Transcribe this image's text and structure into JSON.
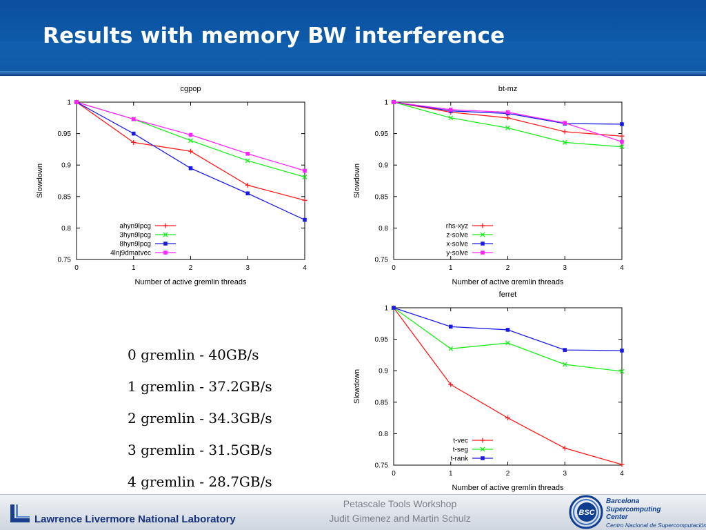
{
  "slide": {
    "title": "Results with memory BW interference"
  },
  "bandwidth_list": [
    "0 gremlin - 40GB/s",
    "1 gremlin - 37.2GB/s",
    "2 gremlin - 34.3GB/s",
    "3 gremlin - 31.5GB/s",
    "4 gremlin - 28.7GB/s"
  ],
  "footer": {
    "lab_name": "Lawrence Livermore National Laboratory",
    "workshop": "Petascale Tools Workshop",
    "authors": "Judit Gimenez and Martin Schulz",
    "bsc_logo_text": "BSC",
    "bsc_line1": "Barcelona",
    "bsc_line2": "Supercomputing",
    "bsc_line3": "Center",
    "bsc_line4": "Centro Nacional de Supercomputación"
  },
  "colors": {
    "red": "#ff1a1a",
    "green": "#1aee1a",
    "blue": "#1a1ae6",
    "magenta": "#ff22ff",
    "header": "#0d5aa8"
  },
  "chart_data": [
    {
      "id": "cgpop",
      "type": "line",
      "title": "cgpop",
      "xlabel": "Number of active gremlin threads",
      "ylabel": "Slowdown",
      "x": [
        0,
        1,
        2,
        3,
        4
      ],
      "xlim": [
        0,
        4
      ],
      "ylim": [
        0.75,
        1
      ],
      "yticks": [
        0.75,
        0.8,
        0.85,
        0.9,
        0.95,
        1
      ],
      "ytick_labels": [
        "0.75",
        "0.8",
        "0.85",
        "0.9",
        "0.95",
        "1"
      ],
      "xtick_labels": [
        "0",
        "1",
        "2",
        "3",
        "4"
      ],
      "legend": "bottom-left",
      "series": [
        {
          "name": "ahyn9lpcg",
          "color": "red",
          "marker": "plus",
          "values": [
            1.0,
            0.936,
            0.922,
            0.868,
            0.844
          ]
        },
        {
          "name": "3hyn9lpcg",
          "color": "green",
          "marker": "x",
          "values": [
            1.0,
            0.973,
            0.939,
            0.907,
            0.881
          ]
        },
        {
          "name": "8hyn9lpcg",
          "color": "blue",
          "marker": "square",
          "values": [
            1.0,
            0.95,
            0.895,
            0.855,
            0.813
          ]
        },
        {
          "name": "4lnj9dmatvec",
          "color": "magenta",
          "marker": "square",
          "values": [
            1.0,
            0.973,
            0.948,
            0.918,
            0.891
          ]
        }
      ]
    },
    {
      "id": "bt-mz",
      "type": "line",
      "title": "bt-mz",
      "xlabel": "Number of active gremlin threads",
      "ylabel": "Slowdown",
      "x": [
        0,
        1,
        2,
        3,
        4
      ],
      "xlim": [
        0,
        4
      ],
      "ylim": [
        0.75,
        1
      ],
      "yticks": [
        0.75,
        0.8,
        0.85,
        0.9,
        0.95,
        1
      ],
      "ytick_labels": [
        "0.75",
        "0.8",
        "0.85",
        "0.9",
        "0.95",
        "1"
      ],
      "xtick_labels": [
        "0",
        "1",
        "2",
        "3",
        "4"
      ],
      "legend": "bottom-left",
      "series": [
        {
          "name": "rhs-xyz",
          "color": "red",
          "marker": "plus",
          "values": [
            1.0,
            0.984,
            0.975,
            0.953,
            0.946
          ]
        },
        {
          "name": "z-solve",
          "color": "green",
          "marker": "x",
          "values": [
            1.0,
            0.975,
            0.959,
            0.936,
            0.929
          ]
        },
        {
          "name": "x-solve",
          "color": "blue",
          "marker": "square",
          "values": [
            1.0,
            0.986,
            0.982,
            0.966,
            0.965
          ]
        },
        {
          "name": "y-solve",
          "color": "magenta",
          "marker": "square",
          "values": [
            1.0,
            0.988,
            0.984,
            0.967,
            0.937
          ]
        }
      ]
    },
    {
      "id": "ferret",
      "type": "line",
      "title": "ferret",
      "xlabel": "Number of active gremlin threads",
      "ylabel": "Slowdown",
      "x": [
        0,
        1,
        2,
        3,
        4
      ],
      "xlim": [
        0,
        4
      ],
      "ylim": [
        0.75,
        1
      ],
      "yticks": [
        0.75,
        0.8,
        0.85,
        0.9,
        0.95,
        1
      ],
      "ytick_labels": [
        "0.75",
        "0.8",
        "0.85",
        "0.9",
        "0.95",
        "1"
      ],
      "xtick_labels": [
        "0",
        "1",
        "2",
        "3",
        "4"
      ],
      "legend": "bottom-left",
      "series": [
        {
          "name": "t-vec",
          "color": "red",
          "marker": "plus",
          "values": [
            1.0,
            0.878,
            0.825,
            0.777,
            0.751
          ]
        },
        {
          "name": "t-seg",
          "color": "green",
          "marker": "x",
          "values": [
            1.0,
            0.935,
            0.944,
            0.91,
            0.899
          ]
        },
        {
          "name": "t-rank",
          "color": "blue",
          "marker": "square",
          "values": [
            1.0,
            0.97,
            0.965,
            0.933,
            0.932
          ]
        }
      ]
    }
  ]
}
